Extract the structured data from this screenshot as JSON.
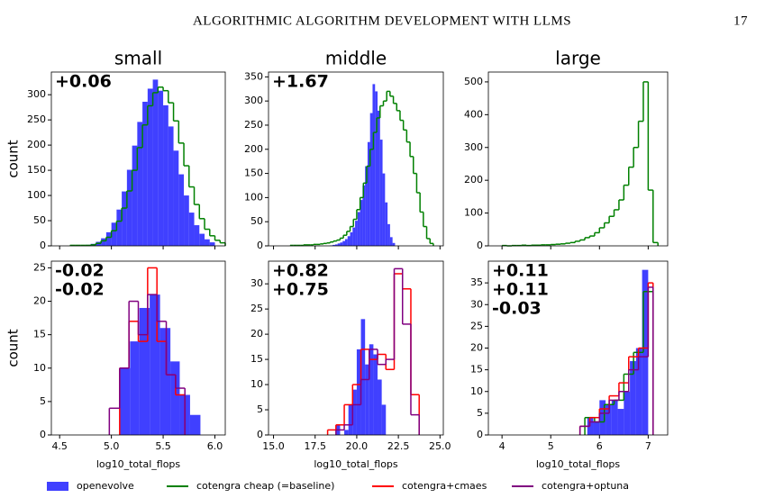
{
  "header": {
    "title": "ALGORITHMIC ALGORITHM DEVELOPMENT WITH LLMS",
    "page": "17"
  },
  "chart_data": [
    {
      "type": "histogram",
      "title": "small",
      "ylabel": "count",
      "xlim": [
        4.42,
        6.1
      ],
      "xticks": [
        4.5,
        5,
        5.5,
        6
      ],
      "ylim": [
        0,
        345
      ],
      "yticks": [
        0,
        50,
        100,
        150,
        200,
        250,
        300
      ],
      "annotations": [
        {
          "text": "+0.06",
          "color": "#008000"
        }
      ],
      "series": [
        {
          "name": "openevolve",
          "color": "#0000ff",
          "style": "bar",
          "bins": [
            4.7,
            4.75,
            4.8,
            4.85,
            4.9,
            4.95,
            5.0,
            5.05,
            5.1,
            5.15,
            5.2,
            5.25,
            5.3,
            5.35,
            5.4,
            5.45,
            5.5,
            5.55,
            5.6,
            5.65,
            5.7,
            5.75,
            5.8,
            5.85,
            5.9,
            5.95,
            6.0
          ],
          "values": [
            1,
            2,
            4,
            8,
            15,
            27,
            46,
            72,
            108,
            151,
            199,
            246,
            286,
            312,
            330,
            308,
            279,
            237,
            189,
            142,
            100,
            66,
            41,
            24,
            13,
            7
          ]
        },
        {
          "name": "cotengra cheap (=baseline)",
          "color": "#008000",
          "style": "step",
          "bins": [
            4.6,
            4.65,
            4.7,
            4.75,
            4.8,
            4.85,
            4.9,
            4.95,
            5.0,
            5.05,
            5.1,
            5.15,
            5.2,
            5.25,
            5.3,
            5.35,
            5.4,
            5.45,
            5.5,
            5.55,
            5.6,
            5.65,
            5.7,
            5.75,
            5.8,
            5.85,
            5.9,
            5.95,
            6.0,
            6.05,
            6.1
          ],
          "values": [
            1,
            1,
            1,
            1,
            2,
            5,
            10,
            17,
            30,
            49,
            75,
            109,
            150,
            195,
            240,
            278,
            304,
            315,
            308,
            284,
            248,
            204,
            159,
            117,
            82,
            54,
            33,
            20,
            11,
            6
          ]
        }
      ]
    },
    {
      "type": "histogram",
      "title": "middle",
      "xlim": [
        14.7,
        25.2
      ],
      "xticks": [
        15,
        17.5,
        20,
        22.5,
        25
      ],
      "ylim": [
        0,
        360
      ],
      "yticks": [
        0,
        50,
        100,
        150,
        200,
        250,
        300,
        350
      ],
      "annotations": [
        {
          "text": "+1.67",
          "color": "#008000"
        }
      ],
      "series": [
        {
          "name": "openevolve",
          "color": "#0000ff",
          "style": "bar",
          "bins": [
            18.4,
            18.55,
            18.7,
            18.85,
            19.0,
            19.15,
            19.3,
            19.45,
            19.6,
            19.75,
            19.9,
            20.05,
            20.2,
            20.35,
            20.5,
            20.65,
            20.8,
            20.95,
            21.1,
            21.25,
            21.4,
            21.55,
            21.7,
            21.85,
            22.0,
            22.15,
            22.3
          ],
          "values": [
            1,
            2,
            3,
            5,
            7,
            10,
            14,
            20,
            28,
            38,
            52,
            70,
            95,
            125,
            165,
            215,
            275,
            335,
            320,
            280,
            220,
            150,
            90,
            45,
            18,
            6
          ]
        },
        {
          "name": "cotengra cheap (=baseline)",
          "color": "#008000",
          "style": "step",
          "bins": [
            16.0,
            16.2,
            16.4,
            16.6,
            16.8,
            17.0,
            17.2,
            17.4,
            17.6,
            17.8,
            18.0,
            18.2,
            18.4,
            18.6,
            18.8,
            19.0,
            19.2,
            19.4,
            19.6,
            19.8,
            20.0,
            20.2,
            20.4,
            20.6,
            20.8,
            21.0,
            21.2,
            21.4,
            21.6,
            21.8,
            22.0,
            22.2,
            22.4,
            22.6,
            22.8,
            23.0,
            23.2,
            23.4,
            23.6,
            23.8,
            24.0,
            24.2,
            24.4,
            24.6
          ],
          "values": [
            1,
            1,
            1,
            1,
            2,
            2,
            2,
            3,
            3,
            4,
            5,
            6,
            8,
            10,
            12,
            16,
            22,
            30,
            40,
            55,
            75,
            100,
            130,
            165,
            200,
            235,
            265,
            290,
            300,
            320,
            310,
            295,
            280,
            260,
            240,
            215,
            185,
            150,
            110,
            70,
            40,
            15,
            5
          ]
        }
      ]
    },
    {
      "type": "histogram",
      "title": "large",
      "xlim": [
        3.72,
        7.4
      ],
      "xticks": [
        4,
        5,
        6,
        7
      ],
      "ylim": [
        0,
        530
      ],
      "yticks": [
        0,
        100,
        200,
        300,
        400,
        500
      ],
      "annotations": [],
      "series": [
        {
          "name": "cotengra cheap (=baseline)",
          "color": "#008000",
          "style": "step",
          "bins": [
            4.0,
            4.1,
            4.2,
            4.3,
            4.4,
            4.5,
            4.6,
            4.7,
            4.8,
            4.9,
            5.0,
            5.1,
            5.2,
            5.3,
            5.4,
            5.5,
            5.6,
            5.7,
            5.8,
            5.9,
            6.0,
            6.1,
            6.2,
            6.3,
            6.4,
            6.5,
            6.6,
            6.7,
            6.8,
            6.9,
            7.0,
            7.1,
            7.2
          ],
          "values": [
            1,
            0,
            1,
            1,
            2,
            1,
            2,
            2,
            3,
            3,
            4,
            5,
            6,
            8,
            10,
            14,
            18,
            25,
            30,
            40,
            55,
            70,
            90,
            110,
            140,
            185,
            240,
            300,
            380,
            500,
            170,
            10
          ]
        }
      ]
    },
    {
      "type": "histogram",
      "ylabel": "count",
      "xlabel": "log10_total_flops",
      "xlim": [
        4.42,
        6.1
      ],
      "xticks": [
        4.5,
        {
          "value": 5,
          "label": "5.0"
        },
        5.5,
        {
          "value": 6,
          "label": "6.0"
        }
      ],
      "ylim": [
        0,
        26
      ],
      "yticks": [
        0,
        5,
        10,
        15,
        20,
        25
      ],
      "annotations": [
        {
          "text": "-0.02",
          "color": "#ff0000"
        },
        {
          "text": "-0.02",
          "color": "#800080"
        }
      ],
      "series": [
        {
          "name": "openevolve",
          "color": "#0000ff",
          "style": "bar",
          "bins": [
            5.08,
            5.18,
            5.27,
            5.37,
            5.47,
            5.57,
            5.66,
            5.76,
            5.86
          ],
          "values": [
            10,
            14,
            19,
            21,
            16,
            11,
            6,
            3
          ]
        },
        {
          "name": "cotengra+cmaes",
          "color": "#ff0000",
          "style": "step",
          "bins": [
            5.08,
            5.17,
            5.26,
            5.35,
            5.44,
            5.53,
            5.62,
            5.71
          ],
          "values": [
            10,
            17,
            14,
            25,
            14,
            9,
            6
          ]
        },
        {
          "name": "cotengra+optuna",
          "color": "#800080",
          "style": "step",
          "bins": [
            4.98,
            5.08,
            5.17,
            5.26,
            5.35,
            5.44,
            5.53,
            5.62,
            5.71
          ],
          "values": [
            4,
            10,
            20,
            15,
            21,
            17,
            9,
            7
          ]
        }
      ]
    },
    {
      "type": "histogram",
      "xlabel": "log10_total_flops",
      "xlim": [
        14.7,
        25.2
      ],
      "xticks": [
        {
          "value": 15,
          "label": "15.0"
        },
        17.5,
        {
          "value": 20,
          "label": "20.0"
        },
        22.5,
        {
          "value": 25,
          "label": "25.0"
        }
      ],
      "ylim": [
        0,
        34.5
      ],
      "yticks": [
        0,
        5,
        10,
        15,
        20,
        25,
        30
      ],
      "annotations": [
        {
          "text": "+0.82",
          "color": "#ff0000"
        },
        {
          "text": "+0.75",
          "color": "#800080"
        }
      ],
      "series": [
        {
          "name": "openevolve",
          "color": "#0000ff",
          "style": "bar",
          "bins": [
            18.75,
            19.0,
            19.25,
            19.5,
            19.75,
            20.0,
            20.25,
            20.5,
            20.75,
            21.0,
            21.25,
            21.5,
            21.75
          ],
          "values": [
            2,
            0,
            1,
            6,
            9,
            17,
            23,
            14,
            18,
            16,
            11,
            6
          ]
        },
        {
          "name": "cotengra+cmaes",
          "color": "#ff0000",
          "style": "step",
          "bins": [
            18.25,
            18.75,
            19.25,
            19.75,
            20.25,
            20.75,
            21.25,
            21.75,
            22.25,
            22.75,
            23.25,
            23.75
          ],
          "values": [
            1,
            2,
            6,
            10,
            17,
            15,
            16,
            13,
            32,
            29,
            8
          ]
        },
        {
          "name": "cotengra+optuna",
          "color": "#800080",
          "style": "step",
          "bins": [
            18.75,
            19.25,
            19.75,
            20.25,
            20.75,
            21.25,
            21.75,
            22.25,
            22.75,
            23.25,
            23.75
          ],
          "values": [
            1,
            2,
            6,
            11,
            17,
            14,
            15,
            33,
            22,
            4
          ]
        }
      ]
    },
    {
      "type": "histogram",
      "xlabel": "log10_total_flops",
      "xlim": [
        3.72,
        7.4
      ],
      "xticks": [
        4,
        5,
        6,
        7
      ],
      "ylim": [
        0,
        40
      ],
      "yticks": [
        0,
        5,
        10,
        15,
        20,
        25,
        30,
        35
      ],
      "annotations": [
        {
          "text": "+0.11",
          "color": "#ff0000"
        },
        {
          "text": "+0.11",
          "color": "#800080"
        },
        {
          "text": "-0.03",
          "color": "#008000"
        }
      ],
      "series": [
        {
          "name": "openevolve",
          "color": "#0000ff",
          "style": "bar",
          "bins": [
            5.75,
            5.875,
            6.0,
            6.125,
            6.25,
            6.375,
            6.5,
            6.625,
            6.75,
            6.875,
            7.0
          ],
          "values": [
            4,
            3,
            8,
            7,
            8,
            6,
            10,
            17,
            20,
            38
          ]
        },
        {
          "name": "cotengra cheap (=baseline)",
          "color": "#008000",
          "style": "step",
          "bins": [
            5.7,
            5.9,
            6.1,
            6.3,
            6.5,
            6.7,
            6.9,
            7.1
          ],
          "values": [
            4,
            3,
            7,
            8,
            14,
            19,
            33
          ]
        },
        {
          "name": "cotengra+cmaes",
          "color": "#ff0000",
          "style": "step",
          "bins": [
            5.6,
            5.8,
            6.0,
            6.2,
            6.4,
            6.6,
            6.8,
            7.0,
            7.1
          ],
          "values": [
            2,
            4,
            6,
            9,
            12,
            18,
            20,
            35
          ]
        },
        {
          "name": "cotengra+optuna",
          "color": "#800080",
          "style": "step",
          "bins": [
            5.6,
            5.8,
            6.0,
            6.2,
            6.4,
            6.6,
            6.8,
            7.0,
            7.1
          ],
          "values": [
            2,
            3,
            5,
            8,
            10,
            15,
            18,
            34
          ]
        }
      ]
    }
  ]
}
